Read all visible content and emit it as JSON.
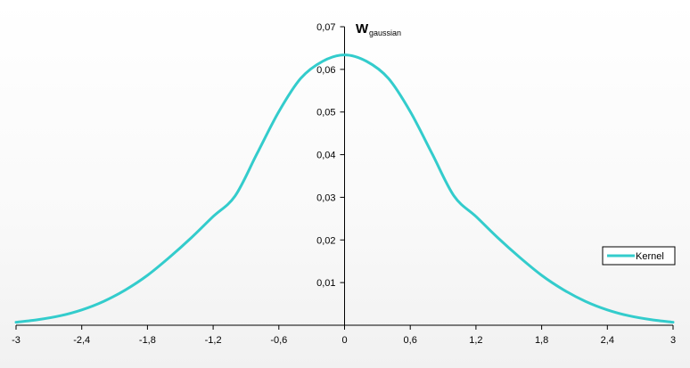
{
  "chart_data": {
    "type": "line",
    "ylabel": {
      "main": "W",
      "sub": "gaussian"
    },
    "xlim": [
      -3,
      3
    ],
    "ylim": [
      0,
      0.07
    ],
    "x_ticks": [
      -3,
      -2.4,
      -1.8,
      -1.2,
      -0.6,
      0,
      0.6,
      1.2,
      1.8,
      2.4,
      3
    ],
    "x_tick_labels": [
      "-3",
      "-2,4",
      "-1,8",
      "-1,2",
      "-0,6",
      "0",
      "0,6",
      "1,2",
      "1,8",
      "2,4",
      "3"
    ],
    "y_ticks": [
      0.01,
      0.02,
      0.03,
      0.04,
      0.05,
      0.06,
      0.07
    ],
    "y_tick_labels": [
      "0,01",
      "0,02",
      "0,03",
      "0,04",
      "0,05",
      "0,06",
      "0,07"
    ],
    "grid": false,
    "legend_position": "right",
    "series": [
      {
        "name": "Kernel",
        "color": "#33cccc",
        "x": [
          -3,
          -2.8,
          -2.6,
          -2.4,
          -2.2,
          -2,
          -1.8,
          -1.6,
          -1.4,
          -1.2,
          -1,
          -0.8,
          -0.6,
          -0.4,
          -0.2,
          0,
          0.2,
          0.4,
          0.6,
          0.8,
          1,
          1.2,
          1.4,
          1.6,
          1.8,
          2,
          2.2,
          2.4,
          2.6,
          2.8,
          3
        ],
        "y": [
          0.0007,
          0.0013,
          0.0022,
          0.0036,
          0.0056,
          0.0083,
          0.0117,
          0.0159,
          0.0205,
          0.0255,
          0.0303,
          0.0402,
          0.0501,
          0.0579,
          0.0619,
          0.0634,
          0.0619,
          0.0579,
          0.0501,
          0.0402,
          0.0303,
          0.0255,
          0.0205,
          0.0159,
          0.0117,
          0.0083,
          0.0056,
          0.0036,
          0.0022,
          0.0013,
          0.0007
        ]
      }
    ]
  }
}
